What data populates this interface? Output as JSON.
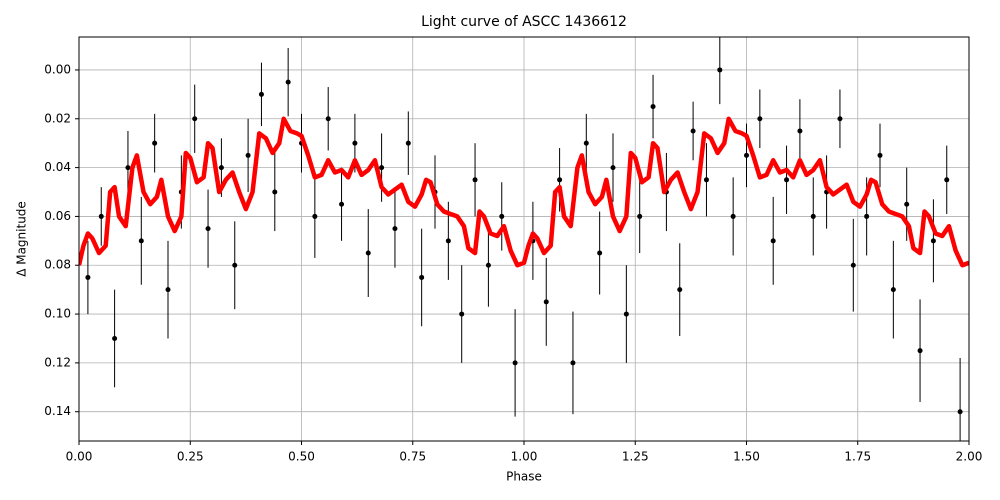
{
  "chart_data": {
    "type": "scatter",
    "title": "Light curve of ASCC 1436612",
    "xlabel": "Phase",
    "ylabel": "Δ Magnitude",
    "xlim": [
      0,
      2
    ],
    "ylim": [
      -0.0135,
      0.152
    ],
    "y_inverted": true,
    "grid": true,
    "xticks": [
      {
        "value": 0,
        "label": "0.00"
      },
      {
        "value": 0.25,
        "label": "0.25"
      },
      {
        "value": 0.5,
        "label": "0.50"
      },
      {
        "value": 0.75,
        "label": "0.75"
      },
      {
        "value": 1,
        "label": "1.00"
      },
      {
        "value": 1.25,
        "label": "1.25"
      },
      {
        "value": 1.5,
        "label": "1.50"
      },
      {
        "value": 1.75,
        "label": "1.75"
      },
      {
        "value": 2,
        "label": "2.00"
      }
    ],
    "yticks": [
      {
        "value": 0,
        "label": "0.00"
      },
      {
        "value": 0.02,
        "label": "0.02"
      },
      {
        "value": 0.04,
        "label": "0.04"
      },
      {
        "value": 0.06,
        "label": "0.06"
      },
      {
        "value": 0.08,
        "label": "0.08"
      },
      {
        "value": 0.1,
        "label": "0.10"
      },
      {
        "value": 0.12,
        "label": "0.12"
      },
      {
        "value": 0.14,
        "label": "0.14"
      }
    ],
    "series": [
      {
        "type": "errorbar",
        "color": "#000000",
        "x": [
          0.02,
          0.05,
          0.08,
          0.11,
          0.14,
          0.17,
          0.2,
          0.23,
          0.26,
          0.29,
          0.32,
          0.35,
          0.38,
          0.41,
          0.44,
          0.47,
          0.5,
          0.53,
          0.56,
          0.59,
          0.62,
          0.65,
          0.68,
          0.71,
          0.74,
          0.77,
          0.8,
          0.83,
          0.86,
          0.89,
          0.92,
          0.95,
          0.98,
          1.02,
          1.05,
          1.08,
          1.11,
          1.14,
          1.17,
          1.2,
          1.23,
          1.26,
          1.29,
          1.32,
          1.35,
          1.38,
          1.41,
          1.44,
          1.47,
          1.5,
          1.53,
          1.56,
          1.59,
          1.62,
          1.65,
          1.68,
          1.71,
          1.74,
          1.77,
          1.8,
          1.83,
          1.86,
          1.89,
          1.92,
          1.95,
          1.98
        ],
        "values": [
          0.085,
          0.06,
          0.11,
          0.04,
          0.07,
          0.03,
          0.09,
          0.05,
          0.02,
          0.065,
          0.04,
          0.08,
          0.035,
          0.01,
          0.05,
          0.005,
          0.03,
          0.06,
          0.02,
          0.055,
          0.03,
          0.075,
          0.04,
          0.065,
          0.03,
          0.085,
          0.05,
          0.07,
          0.1,
          0.045,
          0.08,
          0.06,
          0.12,
          0.07,
          0.095,
          0.045,
          0.12,
          0.03,
          0.075,
          0.04,
          0.1,
          0.06,
          0.015,
          0.05,
          0.09,
          0.025,
          0.045,
          0.0,
          0.06,
          0.035,
          0.02,
          0.07,
          0.045,
          0.025,
          0.06,
          0.05,
          0.02,
          0.08,
          0.06,
          0.035,
          0.09,
          0.055,
          0.115,
          0.07,
          0.045,
          0.14
        ],
        "errors": [
          0.015,
          0.012,
          0.02,
          0.015,
          0.018,
          0.012,
          0.02,
          0.015,
          0.014,
          0.016,
          0.012,
          0.018,
          0.015,
          0.013,
          0.016,
          0.014,
          0.012,
          0.017,
          0.013,
          0.015,
          0.012,
          0.018,
          0.014,
          0.016,
          0.013,
          0.02,
          0.015,
          0.016,
          0.02,
          0.015,
          0.017,
          0.014,
          0.022,
          0.016,
          0.018,
          0.013,
          0.021,
          0.012,
          0.017,
          0.014,
          0.02,
          0.015,
          0.013,
          0.016,
          0.019,
          0.012,
          0.015,
          0.014,
          0.016,
          0.013,
          0.012,
          0.018,
          0.014,
          0.013,
          0.016,
          0.015,
          0.012,
          0.019,
          0.016,
          0.013,
          0.02,
          0.015,
          0.021,
          0.017,
          0.014,
          0.022
        ]
      },
      {
        "type": "line",
        "color": "#ff0000",
        "x": [
          0,
          0.01,
          0.02,
          0.03,
          0.045,
          0.06,
          0.07,
          0.08,
          0.09,
          0.105,
          0.12,
          0.13,
          0.145,
          0.16,
          0.175,
          0.185,
          0.2,
          0.215,
          0.23,
          0.24,
          0.25,
          0.265,
          0.28,
          0.29,
          0.3,
          0.315,
          0.33,
          0.345,
          0.36,
          0.375,
          0.39,
          0.405,
          0.42,
          0.435,
          0.45,
          0.46,
          0.475,
          0.49,
          0.5,
          0.515,
          0.53,
          0.545,
          0.56,
          0.575,
          0.59,
          0.605,
          0.62,
          0.635,
          0.65,
          0.665,
          0.68,
          0.695,
          0.71,
          0.725,
          0.74,
          0.755,
          0.77,
          0.78,
          0.79,
          0.805,
          0.82,
          0.835,
          0.85,
          0.865,
          0.875,
          0.89,
          0.9,
          0.91,
          0.925,
          0.94,
          0.955,
          0.97,
          0.985,
          1.0,
          1.01,
          1.02,
          1.03,
          1.045,
          1.06,
          1.07,
          1.08,
          1.09,
          1.105,
          1.12,
          1.13,
          1.145,
          1.16,
          1.175,
          1.185,
          1.2,
          1.215,
          1.23,
          1.24,
          1.25,
          1.265,
          1.28,
          1.29,
          1.3,
          1.315,
          1.33,
          1.345,
          1.36,
          1.375,
          1.39,
          1.405,
          1.42,
          1.435,
          1.45,
          1.46,
          1.475,
          1.49,
          1.5,
          1.515,
          1.53,
          1.545,
          1.56,
          1.575,
          1.59,
          1.605,
          1.62,
          1.635,
          1.65,
          1.665,
          1.68,
          1.695,
          1.71,
          1.725,
          1.74,
          1.755,
          1.77,
          1.78,
          1.79,
          1.805,
          1.82,
          1.835,
          1.85,
          1.865,
          1.875,
          1.89,
          1.9,
          1.91,
          1.925,
          1.94,
          1.955,
          1.97,
          1.985,
          2.0
        ],
        "values": [
          0.08,
          0.072,
          0.067,
          0.069,
          0.075,
          0.072,
          0.05,
          0.048,
          0.06,
          0.064,
          0.04,
          0.035,
          0.05,
          0.055,
          0.052,
          0.045,
          0.06,
          0.066,
          0.06,
          0.034,
          0.036,
          0.046,
          0.044,
          0.03,
          0.032,
          0.05,
          0.045,
          0.042,
          0.05,
          0.057,
          0.05,
          0.026,
          0.028,
          0.034,
          0.03,
          0.02,
          0.025,
          0.026,
          0.027,
          0.035,
          0.044,
          0.043,
          0.037,
          0.042,
          0.041,
          0.044,
          0.037,
          0.043,
          0.041,
          0.037,
          0.048,
          0.051,
          0.049,
          0.047,
          0.054,
          0.056,
          0.051,
          0.045,
          0.046,
          0.055,
          0.058,
          0.059,
          0.06,
          0.064,
          0.073,
          0.075,
          0.058,
          0.06,
          0.067,
          0.068,
          0.064,
          0.074,
          0.08,
          0.079,
          0.072,
          0.067,
          0.069,
          0.075,
          0.072,
          0.05,
          0.048,
          0.06,
          0.064,
          0.04,
          0.035,
          0.05,
          0.055,
          0.052,
          0.045,
          0.06,
          0.066,
          0.06,
          0.034,
          0.036,
          0.046,
          0.044,
          0.03,
          0.032,
          0.05,
          0.045,
          0.042,
          0.05,
          0.057,
          0.05,
          0.026,
          0.028,
          0.034,
          0.03,
          0.02,
          0.025,
          0.026,
          0.027,
          0.035,
          0.044,
          0.043,
          0.037,
          0.042,
          0.041,
          0.044,
          0.037,
          0.043,
          0.041,
          0.037,
          0.048,
          0.051,
          0.049,
          0.047,
          0.054,
          0.056,
          0.051,
          0.045,
          0.046,
          0.055,
          0.058,
          0.059,
          0.06,
          0.064,
          0.073,
          0.075,
          0.058,
          0.06,
          0.067,
          0.068,
          0.064,
          0.074,
          0.08,
          0.079
        ]
      }
    ]
  }
}
